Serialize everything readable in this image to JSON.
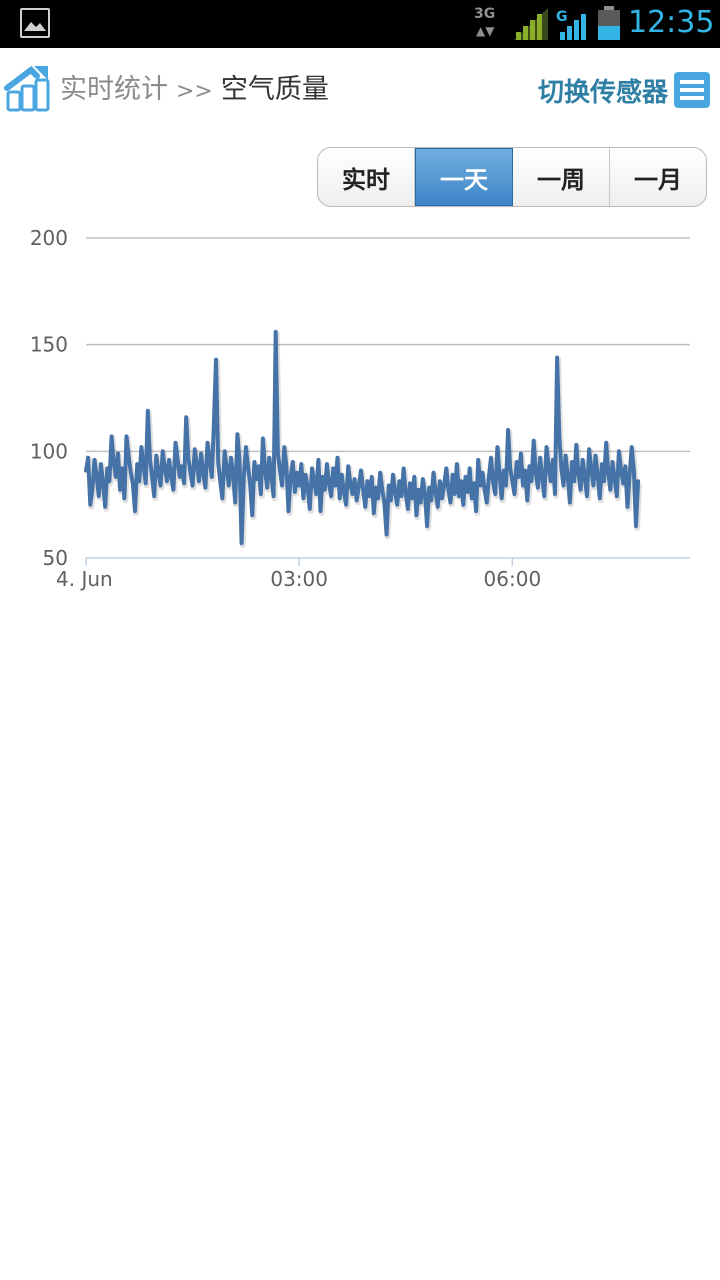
{
  "statusbar": {
    "clock": "12:35",
    "network_label": "3G",
    "network_label_2": "G",
    "icons": [
      "picture-icon",
      "network-3g-icon",
      "signal-icon",
      "signal-g-icon",
      "battery-icon"
    ]
  },
  "header": {
    "breadcrumb_parent": "实时统计",
    "breadcrumb_separator": ">>",
    "breadcrumb_current": "空气质量",
    "switch_sensor_label": "切换传感器",
    "icons": [
      "stats-logo-icon",
      "list-icon"
    ]
  },
  "range_tabs": {
    "items": [
      {
        "label": "实时"
      },
      {
        "label": "一天"
      },
      {
        "label": "一周"
      },
      {
        "label": "一月"
      }
    ],
    "selected": "一天"
  },
  "colors": {
    "accent": "#33b5e5",
    "series": "#4572a7",
    "switch_label": "#2f7fa5"
  },
  "chart_data": {
    "type": "line",
    "title": "",
    "xlabel": "",
    "ylabel": "",
    "ylim": [
      50,
      200
    ],
    "yticks": [
      50,
      100,
      150,
      200
    ],
    "xlim": [
      0,
      8.5
    ],
    "xticks": [
      {
        "value": 0,
        "label": "4. Jun"
      },
      {
        "value": 3,
        "label": "03:00"
      },
      {
        "value": 6,
        "label": "06:00"
      }
    ],
    "grid": true,
    "series": [
      {
        "values": [
          [
            0.0,
            91
          ],
          [
            0.03,
            97
          ],
          [
            0.06,
            75
          ],
          [
            0.09,
            82
          ],
          [
            0.12,
            96
          ],
          [
            0.15,
            88
          ],
          [
            0.18,
            79
          ],
          [
            0.21,
            94
          ],
          [
            0.24,
            85
          ],
          [
            0.27,
            74
          ],
          [
            0.3,
            92
          ],
          [
            0.33,
            86
          ],
          [
            0.36,
            107
          ],
          [
            0.39,
            95
          ],
          [
            0.42,
            88
          ],
          [
            0.45,
            99
          ],
          [
            0.48,
            82
          ],
          [
            0.51,
            92
          ],
          [
            0.54,
            78
          ],
          [
            0.57,
            107
          ],
          [
            0.6,
            98
          ],
          [
            0.63,
            90
          ],
          [
            0.66,
            85
          ],
          [
            0.69,
            72
          ],
          [
            0.72,
            94
          ],
          [
            0.75,
            86
          ],
          [
            0.78,
            102
          ],
          [
            0.81,
            93
          ],
          [
            0.84,
            85
          ],
          [
            0.87,
            119
          ],
          [
            0.9,
            96
          ],
          [
            0.93,
            88
          ],
          [
            0.96,
            79
          ],
          [
            0.99,
            98
          ],
          [
            1.02,
            90
          ],
          [
            1.05,
            84
          ],
          [
            1.08,
            100
          ],
          [
            1.11,
            92
          ],
          [
            1.14,
            86
          ],
          [
            1.17,
            96
          ],
          [
            1.2,
            88
          ],
          [
            1.23,
            82
          ],
          [
            1.26,
            104
          ],
          [
            1.29,
            96
          ],
          [
            1.32,
            88
          ],
          [
            1.35,
            93
          ],
          [
            1.38,
            85
          ],
          [
            1.41,
            116
          ],
          [
            1.44,
            97
          ],
          [
            1.47,
            90
          ],
          [
            1.5,
            84
          ],
          [
            1.53,
            101
          ],
          [
            1.56,
            94
          ],
          [
            1.59,
            86
          ],
          [
            1.62,
            99
          ],
          [
            1.65,
            90
          ],
          [
            1.68,
            83
          ],
          [
            1.71,
            104
          ],
          [
            1.74,
            96
          ],
          [
            1.77,
            88
          ],
          [
            1.8,
            113
          ],
          [
            1.83,
            143
          ],
          [
            1.86,
            95
          ],
          [
            1.89,
            86
          ],
          [
            1.92,
            78
          ],
          [
            1.95,
            100
          ],
          [
            1.98,
            92
          ],
          [
            2.01,
            84
          ],
          [
            2.04,
            97
          ],
          [
            2.07,
            89
          ],
          [
            2.1,
            76
          ],
          [
            2.13,
            108
          ],
          [
            2.16,
            96
          ],
          [
            2.19,
            57
          ],
          [
            2.22,
            88
          ],
          [
            2.25,
            102
          ],
          [
            2.28,
            93
          ],
          [
            2.31,
            85
          ],
          [
            2.34,
            70
          ],
          [
            2.37,
            95
          ],
          [
            2.4,
            87
          ],
          [
            2.43,
            93
          ],
          [
            2.46,
            80
          ],
          [
            2.49,
            106
          ],
          [
            2.52,
            91
          ],
          [
            2.55,
            83
          ],
          [
            2.58,
            97
          ],
          [
            2.61,
            88
          ],
          [
            2.64,
            79
          ],
          [
            2.67,
            156
          ],
          [
            2.7,
            99
          ],
          [
            2.73,
            91
          ],
          [
            2.76,
            84
          ],
          [
            2.79,
            102
          ],
          [
            2.82,
            93
          ],
          [
            2.85,
            72
          ],
          [
            2.88,
            88
          ],
          [
            2.91,
            95
          ],
          [
            2.94,
            81
          ],
          [
            2.97,
            90
          ],
          [
            3.0,
            84
          ],
          [
            3.03,
            94
          ],
          [
            3.06,
            78
          ],
          [
            3.09,
            89
          ],
          [
            3.12,
            83
          ],
          [
            3.15,
            73
          ],
          [
            3.18,
            92
          ],
          [
            3.21,
            86
          ],
          [
            3.24,
            80
          ],
          [
            3.27,
            96
          ],
          [
            3.3,
            72
          ],
          [
            3.33,
            88
          ],
          [
            3.36,
            82
          ],
          [
            3.39,
            94
          ],
          [
            3.42,
            85
          ],
          [
            3.45,
            79
          ],
          [
            3.48,
            92
          ],
          [
            3.51,
            84
          ],
          [
            3.54,
            97
          ],
          [
            3.57,
            78
          ],
          [
            3.6,
            89
          ],
          [
            3.63,
            81
          ],
          [
            3.66,
            75
          ],
          [
            3.69,
            93
          ],
          [
            3.72,
            85
          ],
          [
            3.75,
            80
          ],
          [
            3.78,
            87
          ],
          [
            3.81,
            77
          ],
          [
            3.84,
            84
          ],
          [
            3.87,
            91
          ],
          [
            3.9,
            82
          ],
          [
            3.93,
            74
          ],
          [
            3.96,
            86
          ],
          [
            3.99,
            79
          ],
          [
            4.02,
            88
          ],
          [
            4.05,
            71
          ],
          [
            4.08,
            83
          ],
          [
            4.11,
            78
          ],
          [
            4.14,
            90
          ],
          [
            4.17,
            82
          ],
          [
            4.2,
            76
          ],
          [
            4.23,
            61
          ],
          [
            4.26,
            84
          ],
          [
            4.29,
            77
          ],
          [
            4.32,
            89
          ],
          [
            4.35,
            81
          ],
          [
            4.38,
            75
          ],
          [
            4.41,
            86
          ],
          [
            4.44,
            79
          ],
          [
            4.47,
            92
          ],
          [
            4.5,
            80
          ],
          [
            4.53,
            73
          ],
          [
            4.56,
            85
          ],
          [
            4.59,
            78
          ],
          [
            4.62,
            88
          ],
          [
            4.65,
            70
          ],
          [
            4.68,
            82
          ],
          [
            4.71,
            76
          ],
          [
            4.74,
            87
          ],
          [
            4.77,
            80
          ],
          [
            4.8,
            65
          ],
          [
            4.83,
            83
          ],
          [
            4.86,
            77
          ],
          [
            4.89,
            90
          ],
          [
            4.92,
            81
          ],
          [
            4.95,
            74
          ],
          [
            4.98,
            86
          ],
          [
            5.01,
            78
          ],
          [
            5.04,
            84
          ],
          [
            5.07,
            92
          ],
          [
            5.1,
            82
          ],
          [
            5.13,
            76
          ],
          [
            5.16,
            89
          ],
          [
            5.19,
            80
          ],
          [
            5.22,
            94
          ],
          [
            5.25,
            79
          ],
          [
            5.28,
            86
          ],
          [
            5.31,
            75
          ],
          [
            5.34,
            88
          ],
          [
            5.37,
            81
          ],
          [
            5.4,
            92
          ],
          [
            5.43,
            78
          ],
          [
            5.46,
            85
          ],
          [
            5.49,
            72
          ],
          [
            5.52,
            96
          ],
          [
            5.55,
            84
          ],
          [
            5.58,
            90
          ],
          [
            5.61,
            82
          ],
          [
            5.64,
            76
          ],
          [
            5.67,
            88
          ],
          [
            5.7,
            97
          ],
          [
            5.73,
            85
          ],
          [
            5.76,
            80
          ],
          [
            5.79,
            102
          ],
          [
            5.82,
            89
          ],
          [
            5.85,
            78
          ],
          [
            5.88,
            91
          ],
          [
            5.91,
            84
          ],
          [
            5.94,
            110
          ],
          [
            5.97,
            92
          ],
          [
            6.0,
            86
          ],
          [
            6.03,
            80
          ],
          [
            6.06,
            95
          ],
          [
            6.09,
            88
          ],
          [
            6.12,
            99
          ],
          [
            6.15,
            84
          ],
          [
            6.18,
            91
          ],
          [
            6.21,
            77
          ],
          [
            6.24,
            93
          ],
          [
            6.27,
            86
          ],
          [
            6.3,
            105
          ],
          [
            6.33,
            90
          ],
          [
            6.36,
            83
          ],
          [
            6.39,
            97
          ],
          [
            6.42,
            88
          ],
          [
            6.45,
            79
          ],
          [
            6.48,
            102
          ],
          [
            6.51,
            93
          ],
          [
            6.54,
            86
          ],
          [
            6.57,
            96
          ],
          [
            6.6,
            80
          ],
          [
            6.63,
            144
          ],
          [
            6.66,
            107
          ],
          [
            6.69,
            92
          ],
          [
            6.72,
            84
          ],
          [
            6.75,
            98
          ],
          [
            6.78,
            88
          ],
          [
            6.81,
            76
          ],
          [
            6.84,
            95
          ],
          [
            6.87,
            86
          ],
          [
            6.9,
            103
          ],
          [
            6.93,
            90
          ],
          [
            6.96,
            82
          ],
          [
            6.99,
            96
          ],
          [
            7.02,
            88
          ],
          [
            7.05,
            79
          ],
          [
            7.08,
            101
          ],
          [
            7.11,
            92
          ],
          [
            7.14,
            84
          ],
          [
            7.17,
            98
          ],
          [
            7.2,
            89
          ],
          [
            7.23,
            78
          ],
          [
            7.26,
            94
          ],
          [
            7.29,
            86
          ],
          [
            7.32,
            104
          ],
          [
            7.35,
            90
          ],
          [
            7.38,
            82
          ],
          [
            7.41,
            95
          ],
          [
            7.44,
            87
          ],
          [
            7.47,
            79
          ],
          [
            7.5,
            100
          ],
          [
            7.53,
            91
          ],
          [
            7.56,
            85
          ],
          [
            7.59,
            93
          ],
          [
            7.62,
            74
          ],
          [
            7.65,
            89
          ],
          [
            7.68,
            102
          ],
          [
            7.71,
            91
          ],
          [
            7.74,
            65
          ],
          [
            7.77,
            86
          ]
        ]
      }
    ]
  }
}
